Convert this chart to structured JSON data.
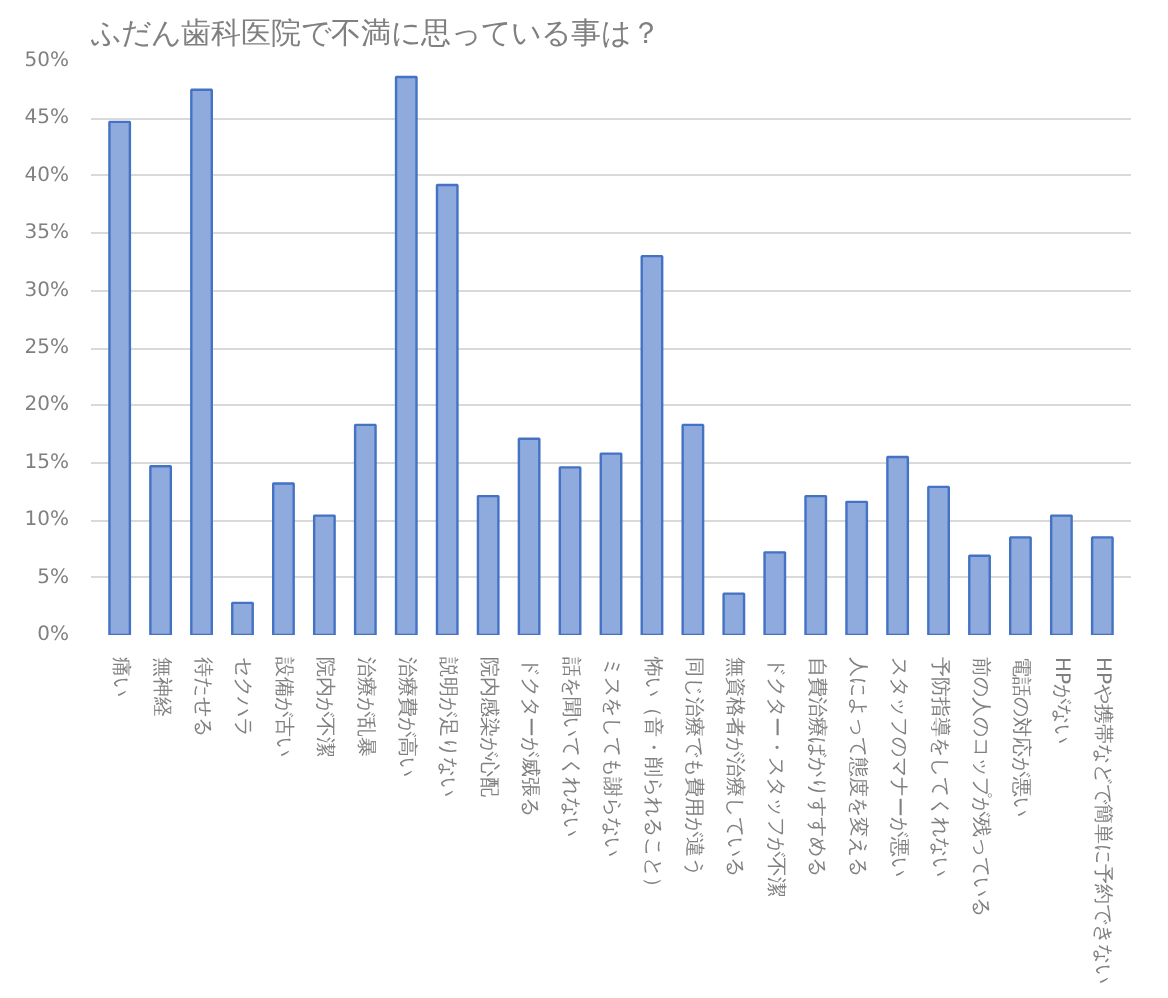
{
  "chart_data": {
    "type": "bar",
    "title": "ふだん歯科医院で不満に思っている事は？",
    "categories": [
      "痛い",
      "無神経",
      "待たせる",
      "セクハラ",
      "設備が古い",
      "院内が不潔",
      "治療が乱暴",
      "治療費が高い",
      "説明が足りない",
      "院内感染が心配",
      "ドクターが威張る",
      "話を聞いてくれない",
      "ミスをしても謝らない",
      "怖い（音・削られること）",
      "同じ治療でも費用が違う",
      "無資格者が治療している",
      "ドクター・スタッフが不潔",
      "自費治療ばかりすすめる",
      "人によって態度を変える",
      "スタッフのマナーが悪い",
      "予防指導をしてくれない",
      "前の人のコップが残っている",
      "電話の対応が悪い",
      "HPがない",
      "HPや携帯などで簡単に予約できない"
    ],
    "values": [
      44.7,
      14.7,
      47.5,
      2.8,
      13.2,
      10.4,
      18.3,
      48.6,
      39.2,
      12.1,
      17.1,
      14.6,
      15.8,
      33.0,
      18.3,
      3.6,
      7.2,
      12.1,
      11.6,
      15.5,
      12.9,
      6.9,
      8.5,
      10.4,
      8.5
    ],
    "color": "#8faadc",
    "ylim": [
      0,
      50
    ],
    "yticks": [
      {
        "value": 0,
        "label": "0%"
      },
      {
        "value": 5,
        "label": "5%"
      },
      {
        "value": 10,
        "label": "10%"
      },
      {
        "value": 15,
        "label": "15%"
      },
      {
        "value": 20,
        "label": "20%"
      },
      {
        "value": 25,
        "label": "25%"
      },
      {
        "value": 30,
        "label": "30%"
      },
      {
        "value": 35,
        "label": "35%"
      },
      {
        "value": 40,
        "label": "40%"
      },
      {
        "value": 45,
        "label": "45%"
      },
      {
        "value": 50,
        "label": "50%"
      }
    ],
    "grid": "y"
  }
}
